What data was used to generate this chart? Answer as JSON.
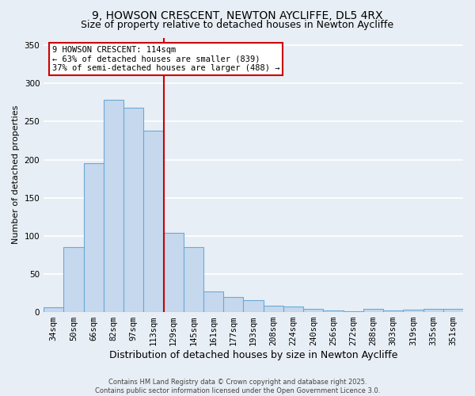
{
  "title1": "9, HOWSON CRESCENT, NEWTON AYCLIFFE, DL5 4RX",
  "title2": "Size of property relative to detached houses in Newton Aycliffe",
  "xlabel": "Distribution of detached houses by size in Newton Aycliffe",
  "ylabel": "Number of detached properties",
  "footer": "Contains HM Land Registry data © Crown copyright and database right 2025.\nContains public sector information licensed under the Open Government Licence 3.0.",
  "categories": [
    "34sqm",
    "50sqm",
    "66sqm",
    "82sqm",
    "97sqm",
    "113sqm",
    "129sqm",
    "145sqm",
    "161sqm",
    "177sqm",
    "193sqm",
    "208sqm",
    "224sqm",
    "240sqm",
    "256sqm",
    "272sqm",
    "288sqm",
    "303sqm",
    "319sqm",
    "335sqm",
    "351sqm"
  ],
  "values": [
    6,
    85,
    195,
    278,
    268,
    238,
    104,
    85,
    27,
    20,
    16,
    8,
    7,
    4,
    2,
    1,
    4,
    2,
    3,
    4,
    4
  ],
  "bar_color": "#c5d8ee",
  "bar_edge_color": "#6aaad4",
  "vline_color": "#cc0000",
  "annotation_text": "9 HOWSON CRESCENT: 114sqm\n← 63% of detached houses are smaller (839)\n37% of semi-detached houses are larger (488) →",
  "annotation_box_color": "white",
  "annotation_box_edge": "#cc0000",
  "ylim": [
    0,
    360
  ],
  "yticks": [
    0,
    50,
    100,
    150,
    200,
    250,
    300,
    350
  ],
  "background_color": "#e8eef5",
  "grid_color": "white",
  "title1_fontsize": 10,
  "title2_fontsize": 9,
  "xlabel_fontsize": 9,
  "ylabel_fontsize": 8,
  "tick_fontsize": 7.5,
  "annotation_fontsize": 7.5,
  "footer_fontsize": 6,
  "vline_bar_index": 5
}
